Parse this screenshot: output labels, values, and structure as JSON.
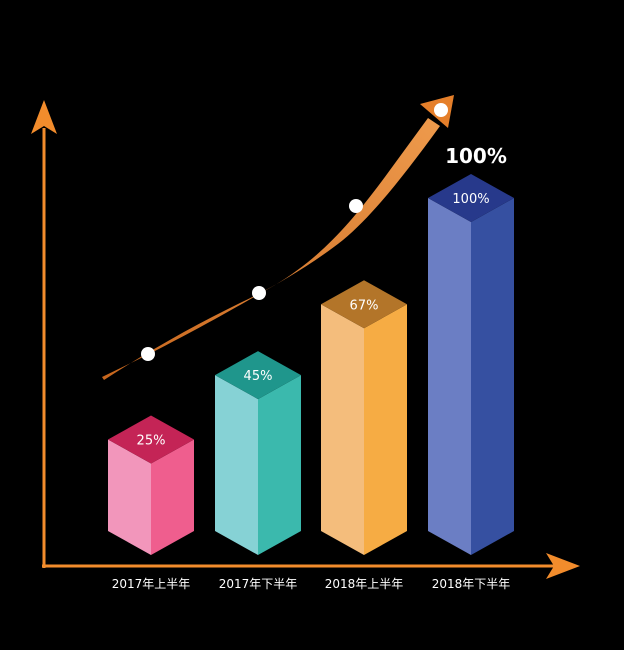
{
  "chart_data": {
    "type": "bar",
    "categories": [
      "2017年上半年",
      "2017年下半年",
      "2018年上半年",
      "2018年下半年"
    ],
    "values": [
      25,
      45,
      67,
      100
    ],
    "value_labels": [
      "25%",
      "45%",
      "67%",
      "100%"
    ],
    "unit": "%",
    "ylim": [
      0,
      100
    ],
    "trend_point_count": 4,
    "highlight_label": "100%",
    "colors": {
      "bars": [
        {
          "front": "#f296bb",
          "side": "#ef5e8e",
          "top": "#c42456"
        },
        {
          "front": "#86d2d5",
          "side": "#3bb9ad",
          "top": "#1f968c"
        },
        {
          "front": "#f4bd7c",
          "side": "#f6ac44",
          "top": "#b37529"
        },
        {
          "front": "#6b7ec4",
          "side": "#3650a1",
          "top": "#27398b"
        }
      ],
      "axis": "#f28c2c",
      "trend": "#e57f2a",
      "text": "#ffffff"
    }
  }
}
